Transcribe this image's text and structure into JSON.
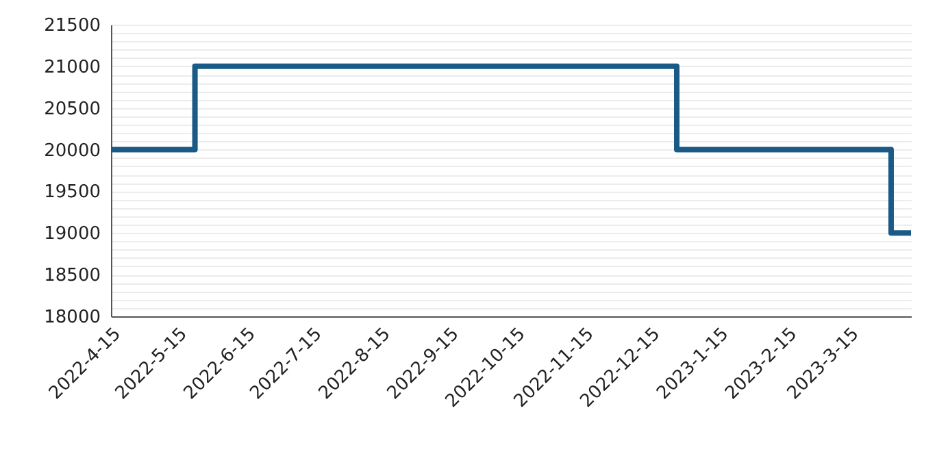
{
  "chart_data": {
    "type": "step",
    "x": [
      "2022-04-15",
      "2022-05-23",
      "2022-12-27",
      "2023-04-03",
      "2023-04-12"
    ],
    "series": [
      {
        "color": "#1a5a87",
        "values": [
          20000,
          21000,
          20000,
          19000,
          19000
        ]
      }
    ],
    "xlim": [
      "2022-04-15",
      "2023-04-12"
    ],
    "xticks": [
      {
        "value": "2022-04-15",
        "label": "2022-4-15"
      },
      {
        "value": "2022-05-15",
        "label": "2022-5-15"
      },
      {
        "value": "2022-06-15",
        "label": "2022-6-15"
      },
      {
        "value": "2022-07-15",
        "label": "2022-7-15"
      },
      {
        "value": "2022-08-15",
        "label": "2022-8-15"
      },
      {
        "value": "2022-09-15",
        "label": "2022-9-15"
      },
      {
        "value": "2022-10-15",
        "label": "2022-10-15"
      },
      {
        "value": "2022-11-15",
        "label": "2022-11-15"
      },
      {
        "value": "2022-12-15",
        "label": "2022-12-15"
      },
      {
        "value": "2023-01-15",
        "label": "2023-1-15"
      },
      {
        "value": "2023-02-15",
        "label": "2023-2-15"
      },
      {
        "value": "2023-03-15",
        "label": "2023-3-15"
      }
    ],
    "ylim": [
      18000,
      21500
    ],
    "yticks": [
      18000,
      {
        "value": 18100,
        "label": null
      },
      {
        "value": 18200,
        "label": null
      },
      {
        "value": 18300,
        "label": null
      },
      {
        "value": 18400,
        "label": null
      },
      18500,
      {
        "value": 18600,
        "label": null
      },
      {
        "value": 18700,
        "label": null
      },
      {
        "value": 18800,
        "label": null
      },
      {
        "value": 18900,
        "label": null
      },
      19000,
      {
        "value": 19100,
        "label": null
      },
      {
        "value": 19200,
        "label": null
      },
      {
        "value": 19300,
        "label": null
      },
      {
        "value": 19400,
        "label": null
      },
      19500,
      {
        "value": 19600,
        "label": null
      },
      {
        "value": 19700,
        "label": null
      },
      {
        "value": 19800,
        "label": null
      },
      {
        "value": 19900,
        "label": null
      },
      20000,
      {
        "value": 20100,
        "label": null
      },
      {
        "value": 20200,
        "label": null
      },
      {
        "value": 20300,
        "label": null
      },
      {
        "value": 20400,
        "label": null
      },
      20500,
      {
        "value": 20600,
        "label": null
      },
      {
        "value": 20700,
        "label": null
      },
      {
        "value": 20800,
        "label": null
      },
      {
        "value": 20900,
        "label": null
      },
      21000,
      {
        "value": 21100,
        "label": null
      },
      {
        "value": 21200,
        "label": null
      },
      {
        "value": 21300,
        "label": null
      },
      {
        "value": 21400,
        "label": null
      },
      21500
    ],
    "grid": "y",
    "line_style": "solid"
  }
}
